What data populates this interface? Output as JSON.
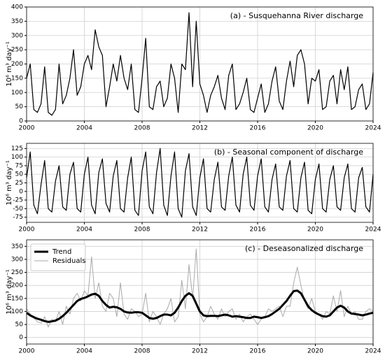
{
  "chart_data": [
    {
      "type": "line",
      "title": "(a) - Susquehanna River discharge",
      "y_label": "10⁶ m³ day⁻¹",
      "color": "#000000",
      "grid": true,
      "x": [
        2000,
        2000.25,
        2000.5,
        2000.75,
        2001,
        2001.25,
        2001.5,
        2001.75,
        2002,
        2002.25,
        2002.5,
        2002.75,
        2003,
        2003.25,
        2003.5,
        2003.75,
        2004,
        2004.25,
        2004.5,
        2004.75,
        2005,
        2005.25,
        2005.5,
        2005.75,
        2006,
        2006.25,
        2006.5,
        2006.75,
        2007,
        2007.25,
        2007.5,
        2007.75,
        2008,
        2008.25,
        2008.5,
        2008.75,
        2009,
        2009.25,
        2009.5,
        2009.75,
        2010,
        2010.25,
        2010.5,
        2010.75,
        2011,
        2011.25,
        2011.5,
        2011.75,
        2012,
        2012.25,
        2012.5,
        2012.75,
        2013,
        2013.25,
        2013.5,
        2013.75,
        2014,
        2014.25,
        2014.5,
        2014.75,
        2015,
        2015.25,
        2015.5,
        2015.75,
        2016,
        2016.25,
        2016.5,
        2016.75,
        2017,
        2017.25,
        2017.5,
        2017.75,
        2018,
        2018.25,
        2018.5,
        2018.75,
        2019,
        2019.25,
        2019.5,
        2019.75,
        2020,
        2020.25,
        2020.5,
        2020.75,
        2021,
        2021.25,
        2021.5,
        2021.75,
        2022,
        2022.25,
        2022.5,
        2022.75,
        2023,
        2023.25,
        2023.5,
        2023.75,
        2024
      ],
      "values": [
        150,
        200,
        40,
        30,
        60,
        190,
        30,
        20,
        40,
        200,
        60,
        90,
        150,
        250,
        90,
        120,
        200,
        230,
        180,
        320,
        260,
        230,
        50,
        120,
        200,
        140,
        230,
        150,
        110,
        200,
        40,
        30,
        150,
        290,
        50,
        40,
        120,
        140,
        50,
        80,
        200,
        150,
        30,
        200,
        180,
        380,
        120,
        350,
        130,
        90,
        30,
        90,
        120,
        160,
        80,
        40,
        160,
        200,
        40,
        60,
        100,
        150,
        40,
        30,
        80,
        130,
        30,
        60,
        140,
        190,
        70,
        40,
        140,
        210,
        120,
        230,
        250,
        200,
        60,
        150,
        140,
        180,
        40,
        50,
        140,
        160,
        60,
        180,
        110,
        190,
        40,
        50,
        110,
        130,
        40,
        60,
        170
      ],
      "xlim": [
        2000,
        2024
      ],
      "xticks": [
        2000,
        2004,
        2008,
        2012,
        2016,
        2020,
        2024
      ],
      "ylim": [
        0,
        400
      ],
      "yticks": [
        0,
        50,
        100,
        150,
        200,
        250,
        300,
        350,
        400
      ]
    },
    {
      "type": "line",
      "title": "(b) - Seasonal component of discharge",
      "y_label": "10⁶ m³ day⁻¹",
      "color": "#000000",
      "grid": true,
      "x": [
        2000,
        2000.25,
        2000.5,
        2000.75,
        2001,
        2001.25,
        2001.5,
        2001.75,
        2002,
        2002.25,
        2002.5,
        2002.75,
        2003,
        2003.25,
        2003.5,
        2003.75,
        2004,
        2004.25,
        2004.5,
        2004.75,
        2005,
        2005.25,
        2005.5,
        2005.75,
        2006,
        2006.25,
        2006.5,
        2006.75,
        2007,
        2007.25,
        2007.5,
        2007.75,
        2008,
        2008.25,
        2008.5,
        2008.75,
        2009,
        2009.25,
        2009.5,
        2009.75,
        2010,
        2010.25,
        2010.5,
        2010.75,
        2011,
        2011.25,
        2011.5,
        2011.75,
        2012,
        2012.25,
        2012.5,
        2012.75,
        2013,
        2013.25,
        2013.5,
        2013.75,
        2014,
        2014.25,
        2014.5,
        2014.75,
        2015,
        2015.25,
        2015.5,
        2015.75,
        2016,
        2016.25,
        2016.5,
        2016.75,
        2017,
        2017.25,
        2017.5,
        2017.75,
        2018,
        2018.25,
        2018.5,
        2018.75,
        2019,
        2019.25,
        2019.5,
        2019.75,
        2020,
        2020.25,
        2020.5,
        2020.75,
        2021,
        2021.25,
        2021.5,
        2021.75,
        2022,
        2022.25,
        2022.5,
        2022.75,
        2023,
        2023.25,
        2023.5,
        2023.75,
        2024
      ],
      "values": [
        40,
        115,
        -40,
        -65,
        20,
        90,
        -50,
        -60,
        30,
        75,
        -45,
        -55,
        50,
        85,
        -50,
        -60,
        50,
        100,
        -40,
        -65,
        55,
        95,
        -35,
        -60,
        45,
        90,
        -50,
        -60,
        40,
        100,
        -55,
        -70,
        60,
        115,
        -45,
        -65,
        55,
        125,
        -40,
        -70,
        45,
        115,
        -50,
        -75,
        60,
        110,
        -45,
        -70,
        40,
        95,
        -50,
        -60,
        35,
        85,
        -45,
        -55,
        45,
        100,
        -40,
        -60,
        50,
        100,
        -40,
        -55,
        45,
        95,
        -45,
        -60,
        35,
        80,
        -45,
        -55,
        45,
        90,
        -50,
        -60,
        40,
        85,
        -55,
        -65,
        35,
        80,
        -50,
        -60,
        35,
        75,
        -45,
        -55,
        40,
        80,
        -50,
        -60,
        40,
        70,
        -45,
        -60,
        50
      ],
      "xlim": [
        2000,
        2024
      ],
      "xticks": [
        2000,
        2004,
        2008,
        2012,
        2016,
        2020,
        2024
      ],
      "ylim": [
        -90,
        140
      ],
      "yticks": [
        -75,
        -50,
        -25,
        0,
        25,
        50,
        75,
        100,
        125
      ]
    },
    {
      "type": "line",
      "title": "(c) - Deseasonalized discharge",
      "y_label": "10⁶ m³ day⁻¹",
      "grid": true,
      "legend": "upper left",
      "x": [
        2000,
        2000.25,
        2000.5,
        2000.75,
        2001,
        2001.25,
        2001.5,
        2001.75,
        2002,
        2002.25,
        2002.5,
        2002.75,
        2003,
        2003.25,
        2003.5,
        2003.75,
        2004,
        2004.25,
        2004.5,
        2004.75,
        2005,
        2005.25,
        2005.5,
        2005.75,
        2006,
        2006.25,
        2006.5,
        2006.75,
        2007,
        2007.25,
        2007.5,
        2007.75,
        2008,
        2008.25,
        2008.5,
        2008.75,
        2009,
        2009.25,
        2009.5,
        2009.75,
        2010,
        2010.25,
        2010.5,
        2010.75,
        2011,
        2011.25,
        2011.5,
        2011.75,
        2012,
        2012.25,
        2012.5,
        2012.75,
        2013,
        2013.25,
        2013.5,
        2013.75,
        2014,
        2014.25,
        2014.5,
        2014.75,
        2015,
        2015.25,
        2015.5,
        2015.75,
        2016,
        2016.25,
        2016.5,
        2016.75,
        2017,
        2017.25,
        2017.5,
        2017.75,
        2018,
        2018.25,
        2018.5,
        2018.75,
        2019,
        2019.25,
        2019.5,
        2019.75,
        2020,
        2020.25,
        2020.5,
        2020.75,
        2021,
        2021.25,
        2021.5,
        2021.75,
        2022,
        2022.25,
        2022.5,
        2022.75,
        2023,
        2023.25,
        2023.5,
        2023.75,
        2024
      ],
      "series": [
        {
          "name": "Trend",
          "color": "#000000",
          "values": [
            95,
            85,
            78,
            72,
            68,
            63,
            60,
            62,
            65,
            72,
            82,
            95,
            110,
            125,
            140,
            148,
            152,
            158,
            165,
            168,
            160,
            140,
            125,
            115,
            118,
            116,
            110,
            100,
            96,
            95,
            97,
            97,
            95,
            85,
            75,
            72,
            75,
            82,
            88,
            88,
            85,
            95,
            115,
            140,
            160,
            170,
            160,
            130,
            100,
            85,
            82,
            83,
            83,
            82,
            85,
            88,
            85,
            80,
            82,
            80,
            78,
            75,
            75,
            80,
            78,
            75,
            78,
            82,
            90,
            100,
            110,
            125,
            140,
            160,
            178,
            180,
            170,
            145,
            120,
            105,
            95,
            88,
            82,
            80,
            85,
            100,
            115,
            122,
            115,
            100,
            92,
            90,
            88,
            85,
            88,
            92,
            95
          ]
        },
        {
          "name": "Residuals",
          "color": "#aaaaaa",
          "values": [
            110,
            90,
            75,
            60,
            55,
            80,
            40,
            70,
            60,
            100,
            50,
            120,
            90,
            150,
            170,
            140,
            180,
            160,
            310,
            150,
            210,
            120,
            100,
            170,
            150,
            80,
            210,
            90,
            70,
            110,
            100,
            80,
            90,
            170,
            60,
            100,
            80,
            50,
            90,
            110,
            150,
            60,
            80,
            220,
            110,
            280,
            150,
            340,
            90,
            60,
            80,
            120,
            90,
            70,
            110,
            80,
            100,
            110,
            70,
            90,
            60,
            80,
            90,
            70,
            50,
            70,
            80,
            110,
            100,
            110,
            120,
            80,
            120,
            120,
            210,
            270,
            200,
            140,
            110,
            150,
            100,
            90,
            70,
            100,
            90,
            160,
            100,
            180,
            80,
            120,
            90,
            100,
            70,
            70,
            100,
            110,
            100
          ]
        }
      ],
      "xlim": [
        2000,
        2024
      ],
      "xticks": [
        2000,
        2004,
        2008,
        2012,
        2016,
        2020,
        2024
      ],
      "ylim": [
        -25,
        375
      ],
      "yticks": [
        0,
        50,
        100,
        150,
        200,
        250,
        300,
        350
      ]
    }
  ]
}
